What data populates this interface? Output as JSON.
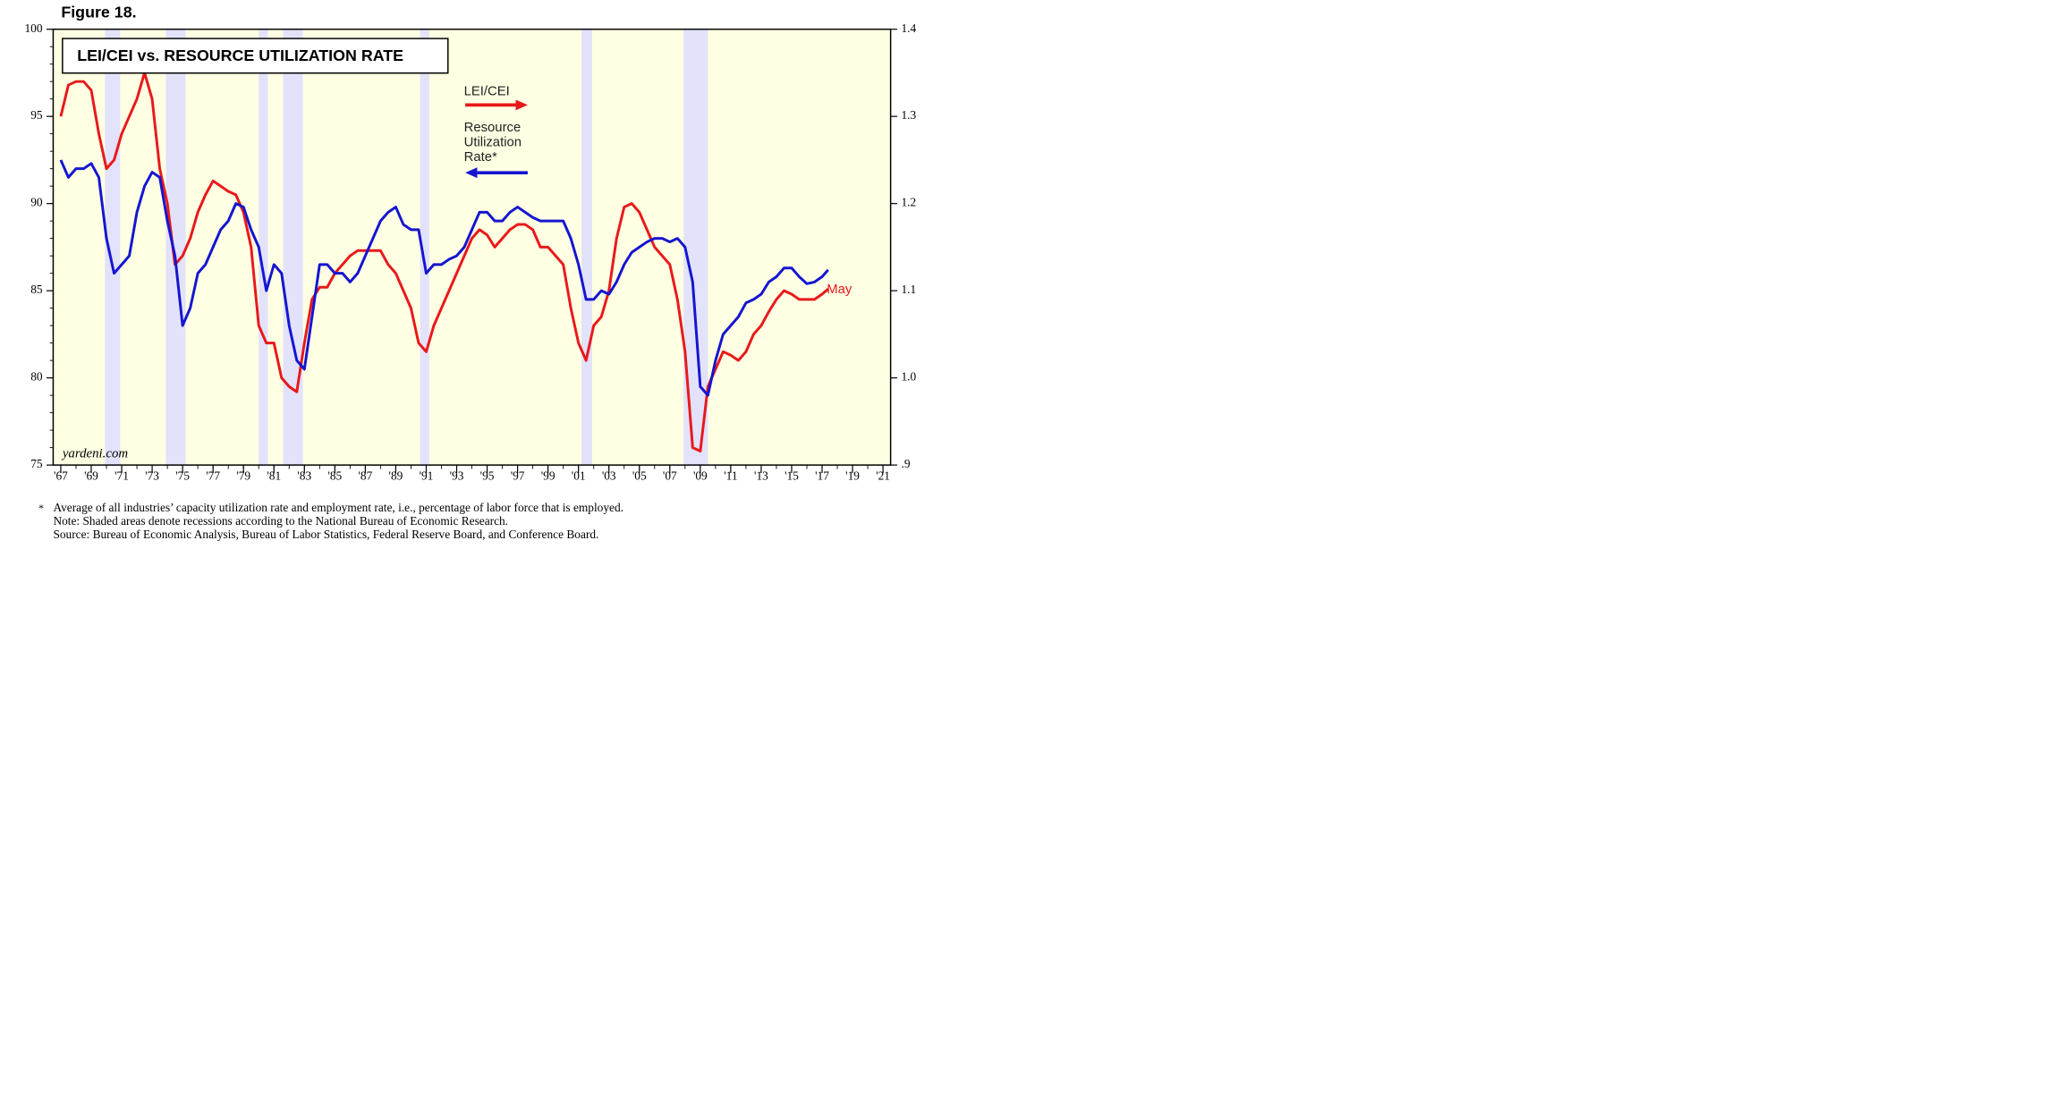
{
  "chart_data": {
    "type": "line",
    "figure_label": "Figure 18.",
    "title": "LEI/CEI vs. RESOURCE UTILIZATION RATE",
    "source_label": "yardeni.com",
    "annotation": "May",
    "footnote_marker": "*",
    "footnotes": [
      "Average of all industries’ capacity utilization rate and employment rate, i.e., percentage of labor force that is employed.",
      "Note: Shaded areas denote recessions according to the National Bureau of Economic Research.",
      "Source: Bureau of Economic Analysis, Bureau of Labor Statistics, Federal Reserve Board, and Conference Board."
    ],
    "x": [
      1967,
      1967.5,
      1968,
      1968.5,
      1969,
      1969.5,
      1970,
      1970.5,
      1971,
      1971.5,
      1972,
      1972.5,
      1973,
      1973.5,
      1974,
      1974.5,
      1975,
      1975.5,
      1976,
      1976.5,
      1977,
      1977.5,
      1978,
      1978.5,
      1979,
      1979.5,
      1980,
      1980.5,
      1981,
      1981.5,
      1982,
      1982.5,
      1983,
      1983.5,
      1984,
      1984.5,
      1985,
      1985.5,
      1986,
      1986.5,
      1987,
      1987.5,
      1988,
      1988.5,
      1989,
      1989.5,
      1990,
      1990.5,
      1991,
      1991.5,
      1992,
      1992.5,
      1993,
      1993.5,
      1994,
      1994.5,
      1995,
      1995.5,
      1996,
      1996.5,
      1997,
      1997.5,
      1998,
      1998.5,
      1999,
      1999.5,
      2000,
      2000.5,
      2001,
      2001.5,
      2002,
      2002.5,
      2003,
      2003.5,
      2004,
      2004.5,
      2005,
      2005.5,
      2006,
      2006.5,
      2007,
      2007.5,
      2008,
      2008.5,
      2009,
      2009.5,
      2010,
      2010.5,
      2011,
      2011.5,
      2012,
      2012.5,
      2013,
      2013.5,
      2014,
      2014.5,
      2015,
      2015.5,
      2016,
      2016.5,
      2017,
      2017.4
    ],
    "series": [
      {
        "name": "LEI/CEI",
        "color": "#e8191b",
        "axis": "y2",
        "values": [
          1.3,
          1.336,
          1.34,
          1.34,
          1.33,
          1.28,
          1.24,
          1.25,
          1.28,
          1.3,
          1.32,
          1.35,
          1.32,
          1.24,
          1.2,
          1.13,
          1.14,
          1.16,
          1.19,
          1.21,
          1.226,
          1.22,
          1.214,
          1.21,
          1.19,
          1.15,
          1.06,
          1.04,
          1.04,
          1.0,
          0.99,
          0.984,
          1.04,
          1.09,
          1.104,
          1.104,
          1.12,
          1.13,
          1.14,
          1.146,
          1.146,
          1.146,
          1.146,
          1.13,
          1.12,
          1.1,
          1.08,
          1.04,
          1.03,
          1.06,
          1.08,
          1.1,
          1.12,
          1.14,
          1.16,
          1.17,
          1.164,
          1.15,
          1.16,
          1.17,
          1.176,
          1.176,
          1.17,
          1.15,
          1.15,
          1.14,
          1.13,
          1.08,
          1.04,
          1.02,
          1.06,
          1.07,
          1.1,
          1.16,
          1.196,
          1.2,
          1.19,
          1.17,
          1.15,
          1.14,
          1.13,
          1.09,
          1.03,
          0.92,
          0.916,
          0.99,
          1.01,
          1.03,
          1.026,
          1.02,
          1.03,
          1.05,
          1.06,
          1.076,
          1.09,
          1.1,
          1.096,
          1.09,
          1.09,
          1.09,
          1.096,
          1.102
        ]
      },
      {
        "name": "Resource Utilization Rate*",
        "color": "#1515d0",
        "values": [
          92.5,
          91.5,
          92,
          92,
          92.3,
          91.5,
          88,
          86,
          86.5,
          87,
          89.5,
          91,
          91.8,
          91.5,
          89,
          87,
          83,
          84,
          86,
          86.5,
          87.5,
          88.5,
          89,
          90,
          89.8,
          88.5,
          87.5,
          85,
          86.5,
          86,
          83,
          81,
          80.5,
          83.5,
          86.5,
          86.5,
          86,
          86,
          85.5,
          86,
          87,
          88,
          89,
          89.5,
          89.8,
          88.8,
          88.5,
          88.5,
          86,
          86.5,
          86.5,
          86.8,
          87,
          87.5,
          88.5,
          89.5,
          89.5,
          89,
          89,
          89.5,
          89.8,
          89.5,
          89.2,
          89,
          89,
          89,
          89,
          88,
          86.5,
          84.5,
          84.5,
          85,
          84.8,
          85.5,
          86.5,
          87.2,
          87.5,
          87.8,
          88,
          88,
          87.8,
          88,
          87.5,
          85.5,
          79.5,
          79,
          81,
          82.5,
          83,
          83.5,
          84.3,
          84.5,
          84.8,
          85.5,
          85.8,
          86.3,
          86.3,
          85.8,
          85.4,
          85.5,
          85.8,
          86.2
        ]
      }
    ],
    "recessions": [
      [
        1969.9,
        1970.9
      ],
      [
        1973.9,
        1975.2
      ],
      [
        1980.0,
        1980.6
      ],
      [
        1981.6,
        1982.9
      ],
      [
        1990.6,
        1991.2
      ],
      [
        2001.2,
        2001.9
      ],
      [
        2007.9,
        2009.5
      ]
    ],
    "recession_color": "#e2e2fb",
    "background_color": "#ffffe3",
    "xlim": [
      1966.5,
      2021.5
    ],
    "xticks": [
      {
        "value": 1967,
        "label": "'67"
      },
      {
        "value": 1969,
        "label": "'69"
      },
      {
        "value": 1971,
        "label": "'71"
      },
      {
        "value": 1973,
        "label": "'73"
      },
      {
        "value": 1975,
        "label": "'75"
      },
      {
        "value": 1977,
        "label": "'77"
      },
      {
        "value": 1979,
        "label": "'79"
      },
      {
        "value": 1981,
        "label": "'81"
      },
      {
        "value": 1983,
        "label": "'83"
      },
      {
        "value": 1985,
        "label": "'85"
      },
      {
        "value": 1987,
        "label": "'87"
      },
      {
        "value": 1989,
        "label": "'89"
      },
      {
        "value": 1991,
        "label": "'91"
      },
      {
        "value": 1993,
        "label": "'93"
      },
      {
        "value": 1995,
        "label": "'95"
      },
      {
        "value": 1997,
        "label": "'97"
      },
      {
        "value": 1999,
        "label": "'99"
      },
      {
        "value": 2001,
        "label": "'01"
      },
      {
        "value": 2003,
        "label": "'03"
      },
      {
        "value": 2005,
        "label": "'05"
      },
      {
        "value": 2007,
        "label": "'07"
      },
      {
        "value": 2009,
        "label": "'09"
      },
      {
        "value": 2011,
        "label": "'11"
      },
      {
        "value": 2013,
        "label": "'13"
      },
      {
        "value": 2015,
        "label": "'15"
      },
      {
        "value": 2017,
        "label": "'17"
      },
      {
        "value": 2019,
        "label": "'19"
      },
      {
        "value": 2021,
        "label": "'21"
      }
    ],
    "ylim": [
      75,
      100
    ],
    "yticks": [
      75,
      80,
      85,
      90,
      95,
      100
    ],
    "y2lim": [
      0.9,
      1.4
    ],
    "y2ticks": [
      {
        "value": 0.9,
        "label": ".9"
      },
      {
        "value": 1.0,
        "label": "1.0"
      },
      1.1,
      1.2,
      1.3,
      1.4
    ]
  }
}
